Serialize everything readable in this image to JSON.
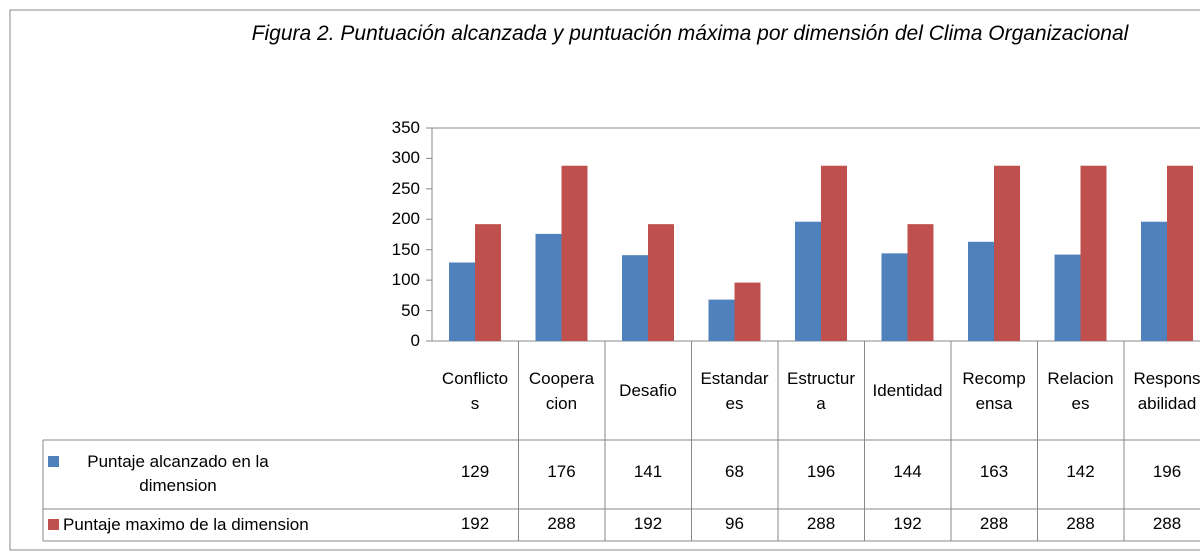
{
  "chart_data": {
    "type": "bar",
    "title": "Figura  2. Puntuación alcanzada y puntuación máxima por dimensión del Clima Organizacional",
    "categories": [
      "Conflictos",
      "Cooperacion",
      "Desafio",
      "Estandares",
      "Estructura",
      "Identidad",
      "Recompensa",
      "Relaciones",
      "Responsabilidad"
    ],
    "series": [
      {
        "name": "Puntaje alcanzado en la dimension",
        "color": "#4f81bd",
        "values": [
          129,
          176,
          141,
          68,
          196,
          144,
          163,
          142,
          196
        ]
      },
      {
        "name": "Puntaje maximo de la dimension",
        "color": "#c0504d",
        "values": [
          192,
          288,
          192,
          96,
          288,
          192,
          288,
          288,
          288
        ]
      }
    ],
    "ylim": [
      0,
      350
    ],
    "yticks": [
      0,
      50,
      100,
      150,
      200,
      250,
      300,
      350
    ],
    "grid": false
  }
}
